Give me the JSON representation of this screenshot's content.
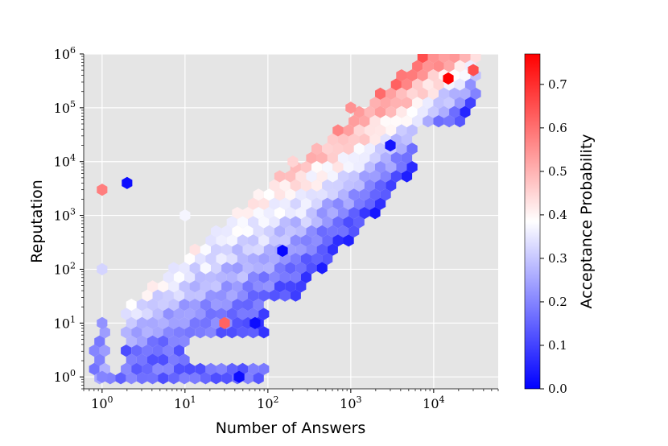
{
  "chart_data": {
    "type": "heatmap",
    "subtype": "hexbin",
    "xlabel": "Number of Answers",
    "ylabel": "Reputation",
    "x_scale": "log",
    "y_scale": "log",
    "xlim": [
      0.6,
      60000
    ],
    "ylim": [
      0.6,
      1000000
    ],
    "x_ticks": [
      1,
      10,
      100,
      1000,
      10000
    ],
    "y_ticks": [
      1,
      10,
      100,
      1000,
      10000,
      100000,
      1000000
    ],
    "x_tick_labels": [
      {
        "base": "10",
        "exp": "0"
      },
      {
        "base": "10",
        "exp": "1"
      },
      {
        "base": "10",
        "exp": "2"
      },
      {
        "base": "10",
        "exp": "3"
      },
      {
        "base": "10",
        "exp": "4"
      }
    ],
    "y_tick_labels": [
      {
        "base": "10",
        "exp": "0"
      },
      {
        "base": "10",
        "exp": "1"
      },
      {
        "base": "10",
        "exp": "2"
      },
      {
        "base": "10",
        "exp": "3"
      },
      {
        "base": "10",
        "exp": "4"
      },
      {
        "base": "10",
        "exp": "5"
      },
      {
        "base": "10",
        "exp": "6"
      }
    ],
    "grid": true,
    "background_color": "#e5e5e5",
    "colormap": "bwr",
    "colorbar": {
      "label": "Acceptance Probability",
      "range": [
        0.0,
        0.77
      ],
      "ticks": [
        "0.0",
        "0.1",
        "0.2",
        "0.3",
        "0.4",
        "0.5",
        "0.6",
        "0.7"
      ],
      "tick_values": [
        0.0,
        0.1,
        0.2,
        0.3,
        0.4,
        0.5,
        0.6,
        0.7
      ]
    },
    "hexbins_sample": [
      {
        "x": 1,
        "y": 1,
        "value": 0.2
      },
      {
        "x": 1,
        "y": 10,
        "value": 0.22
      },
      {
        "x": 1,
        "y": 100,
        "value": 0.32
      },
      {
        "x": 1,
        "y": 3000,
        "value": 0.58
      },
      {
        "x": 2,
        "y": 4000,
        "value": 0.02
      },
      {
        "x": 45,
        "y": 1,
        "value": 0.02
      },
      {
        "x": 70,
        "y": 10,
        "value": 0.02
      },
      {
        "x": 150,
        "y": 220,
        "value": 0.01
      },
      {
        "x": 30,
        "y": 10,
        "value": 0.62
      },
      {
        "x": 10,
        "y": 1000,
        "value": 0.37
      },
      {
        "x": 200,
        "y": 10000,
        "value": 0.45
      },
      {
        "x": 1000,
        "y": 100000,
        "value": 0.55
      },
      {
        "x": 3000,
        "y": 20000,
        "value": 0.03
      },
      {
        "x": 15000,
        "y": 350000,
        "value": 0.77
      },
      {
        "x": 30000,
        "y": 500000,
        "value": 0.65
      }
    ]
  }
}
